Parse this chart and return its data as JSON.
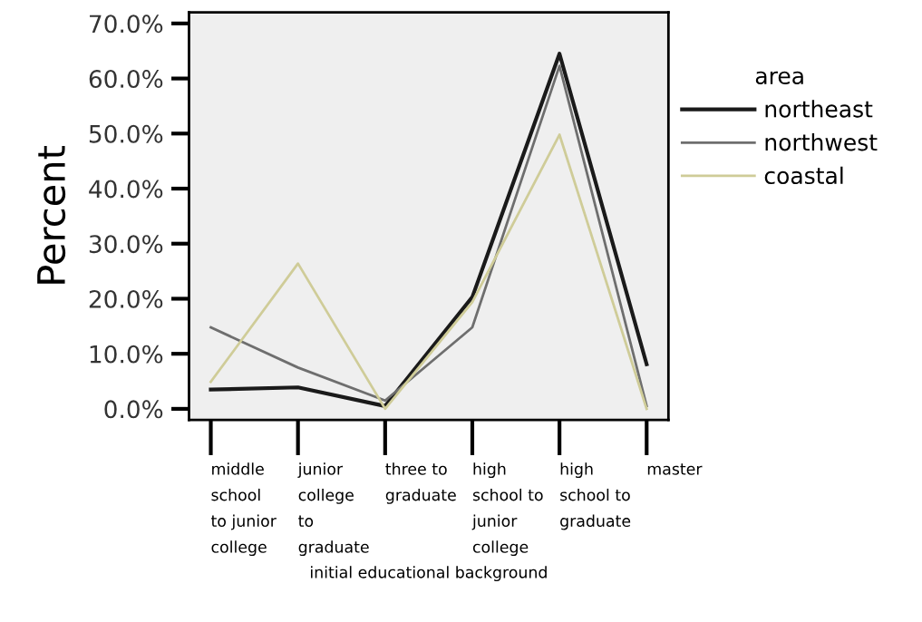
{
  "chart_data": {
    "type": "line",
    "xlabel": "initial educational background",
    "ylabel": "Percent",
    "legend_title": "area",
    "categories": [
      "middle\nschool\nto junior\ncollege",
      "junior\ncollege\nto\ngraduate",
      "three to\ngraduate",
      "high\nschool to\njunior\ncollege",
      "high\nschool to\ngraduate",
      "master"
    ],
    "series": [
      {
        "name": "northeast",
        "color": "#1a1a1a",
        "values": [
          3.5,
          3.9,
          0.5,
          20.3,
          64.5,
          8.1
        ]
      },
      {
        "name": "northwest",
        "color": "#6e6e6e",
        "values": [
          14.8,
          7.5,
          1.5,
          14.8,
          62.3,
          0.5
        ]
      },
      {
        "name": "coastal",
        "color": "#cfcc98",
        "values": [
          4.9,
          26.4,
          0,
          19.4,
          49.8,
          0
        ]
      }
    ],
    "ylim": [
      -2,
      72
    ],
    "yticks": [
      {
        "value": 0,
        "label": "0.0%"
      },
      {
        "value": 10,
        "label": "10.0%"
      },
      {
        "value": 20,
        "label": "20.0%"
      },
      {
        "value": 30,
        "label": "30.0%"
      },
      {
        "value": 40,
        "label": "40.0%"
      },
      {
        "value": 50,
        "label": "50.0%"
      },
      {
        "value": 60,
        "label": "60.0%"
      },
      {
        "value": 70,
        "label": "70.0%"
      }
    ],
    "legend": "right",
    "grid": false,
    "marker": "none",
    "line_style": "solid"
  }
}
